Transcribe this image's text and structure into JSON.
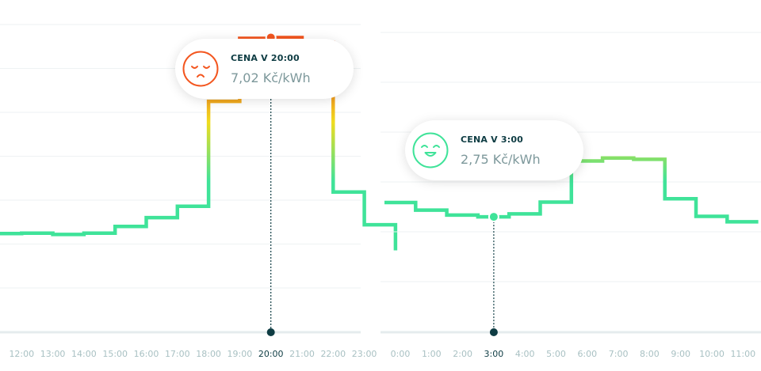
{
  "colors": {
    "low": "#3fe399",
    "mid": "#f0dc1e",
    "high": "#f3561f",
    "grid": "#eef2f3",
    "axis": "#e5ecee",
    "tick": "#a9c1c3",
    "tick_active": "#0e3c43",
    "marker": "#0e3c43"
  },
  "chart_data": [
    {
      "type": "line",
      "step": true,
      "unit": "Kč/kWh",
      "x": [
        "11:00",
        "12:00",
        "13:00",
        "14:00",
        "15:00",
        "16:00",
        "17:00",
        "18:00",
        "19:00",
        "20:00",
        "21:00",
        "22:00",
        "23:00"
      ],
      "tick_labels": [
        "12:00",
        "13:00",
        "14:00",
        "15:00",
        "16:00",
        "17:00",
        "18:00",
        "19:00",
        "20:00",
        "21:00",
        "22:00",
        "23:00"
      ],
      "values": [
        2.35,
        2.36,
        2.33,
        2.36,
        2.52,
        2.73,
        3.0,
        5.5,
        7.0,
        7.02,
        6.9,
        3.34,
        2.56
      ],
      "ylim": [
        0,
        7.5
      ],
      "grid": true,
      "selected": {
        "x": "20:00",
        "title": "CENA V 20:00",
        "value_text": "7,02 Kč/kWh",
        "mood": "sad"
      }
    },
    {
      "type": "line",
      "step": true,
      "unit": "Kč/kWh",
      "x": [
        "0:00",
        "1:00",
        "2:00",
        "3:00",
        "4:00",
        "5:00",
        "6:00",
        "7:00",
        "8:00",
        "9:00",
        "10:00",
        "11:00"
      ],
      "tick_labels": [
        "0:00",
        "1:00",
        "2:00",
        "3:00",
        "4:00",
        "5:00",
        "6:00",
        "7:00",
        "8:00",
        "9:00",
        "10:00",
        "11:00"
      ],
      "values": [
        3.09,
        2.91,
        2.79,
        2.75,
        2.82,
        3.1,
        4.08,
        4.15,
        4.12,
        3.18,
        2.76,
        2.63
      ],
      "ylim": [
        0,
        7.5
      ],
      "grid": true,
      "selected": {
        "x": "3:00",
        "title": "CENA V 3:00",
        "value_text": "2,75 Kč/kWh",
        "mood": "happy"
      }
    }
  ]
}
